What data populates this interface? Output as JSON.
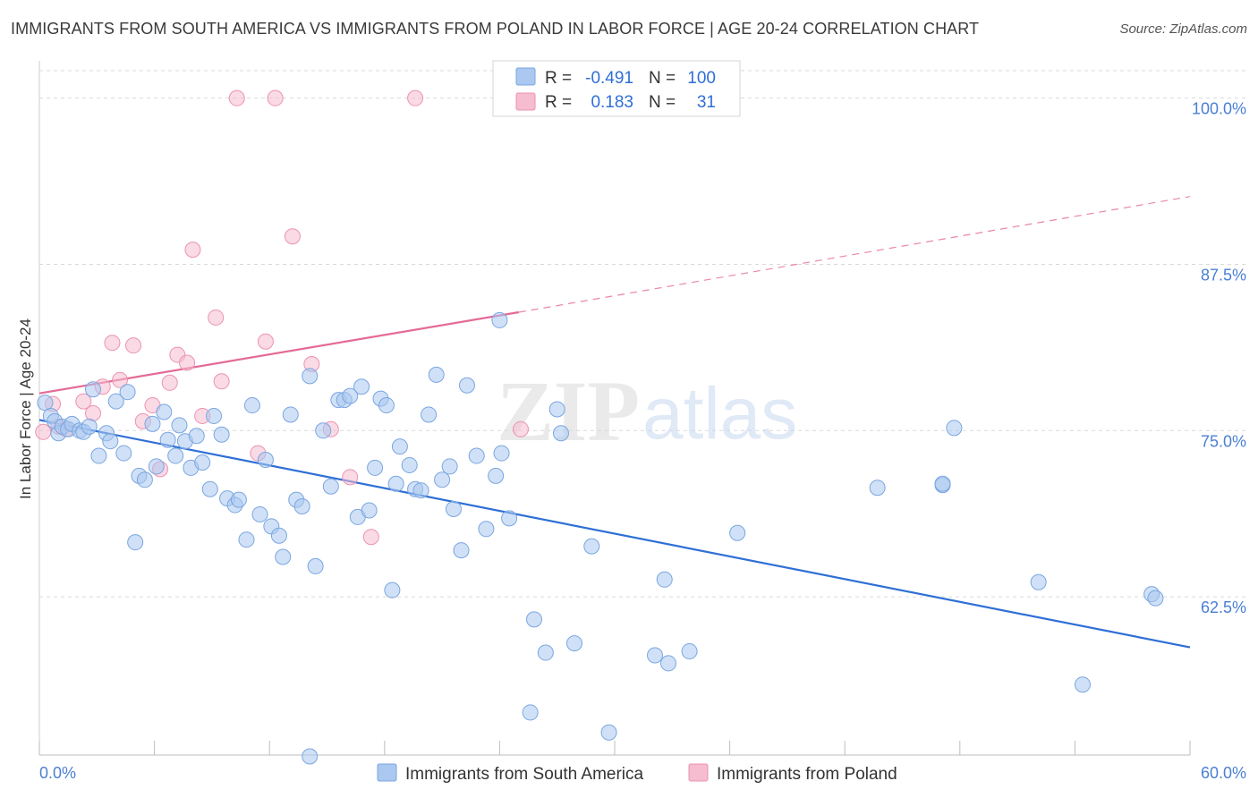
{
  "title": "IMMIGRANTS FROM SOUTH AMERICA VS IMMIGRANTS FROM POLAND IN LABOR FORCE | AGE 20-24 CORRELATION CHART",
  "source": "Source: ZipAtlas.com",
  "watermark": {
    "zip": "ZIP",
    "atlas": "atlas"
  },
  "chart_data": {
    "type": "scatter",
    "xlabel": "",
    "ylabel": "In Labor Force | Age 20-24",
    "xlim": [
      0,
      60
    ],
    "ylim": [
      50.6,
      102.4
    ],
    "x_tick_labels": [
      "0.0%",
      "60.0%"
    ],
    "y_ticks": [
      {
        "value": 100,
        "label": "100.0%"
      },
      {
        "value": 87.5,
        "label": "87.5%"
      },
      {
        "value": 75,
        "label": "75.0%"
      },
      {
        "value": 62.5,
        "label": "62.5%"
      }
    ],
    "colors": {
      "south_america_fill": "#aac8f0",
      "south_america_stroke": "#7aa6e0",
      "south_america_line": "#2f6fd6",
      "poland_fill": "#f6bcd0",
      "poland_stroke": "#eb93b2",
      "poland_line": "#e46a97"
    },
    "legend": [
      {
        "r_label": "R =",
        "r_value": "-0.491",
        "n_label": "N =",
        "n_value": "100"
      },
      {
        "r_label": "R =",
        "r_value": "0.183",
        "n_label": "N =",
        "n_value": "31"
      }
    ],
    "series": [
      {
        "name": "Immigrants from South America",
        "trend": {
          "x0": 0,
          "y0": 75.8,
          "x1": 60,
          "y1": 58.7
        },
        "points": [
          [
            0.3,
            77.1
          ],
          [
            0.6,
            76.1
          ],
          [
            0.8,
            75.7
          ],
          [
            1.0,
            74.8
          ],
          [
            1.2,
            75.3
          ],
          [
            1.5,
            75.1
          ],
          [
            1.7,
            75.5
          ],
          [
            2.1,
            75.0
          ],
          [
            2.3,
            74.9
          ],
          [
            2.6,
            75.3
          ],
          [
            2.8,
            78.1
          ],
          [
            3.1,
            73.1
          ],
          [
            3.5,
            74.8
          ],
          [
            3.7,
            74.2
          ],
          [
            4.0,
            77.2
          ],
          [
            4.4,
            73.3
          ],
          [
            4.6,
            77.9
          ],
          [
            5.0,
            66.6
          ],
          [
            5.2,
            71.6
          ],
          [
            5.5,
            71.3
          ],
          [
            5.9,
            75.5
          ],
          [
            6.1,
            72.3
          ],
          [
            6.5,
            76.4
          ],
          [
            6.7,
            74.3
          ],
          [
            7.1,
            73.1
          ],
          [
            7.3,
            75.4
          ],
          [
            7.6,
            74.2
          ],
          [
            7.9,
            72.2
          ],
          [
            8.2,
            74.6
          ],
          [
            8.5,
            72.6
          ],
          [
            8.9,
            70.6
          ],
          [
            9.1,
            76.1
          ],
          [
            9.5,
            74.7
          ],
          [
            9.8,
            69.9
          ],
          [
            10.2,
            69.4
          ],
          [
            10.4,
            69.8
          ],
          [
            10.8,
            66.8
          ],
          [
            11.1,
            76.9
          ],
          [
            11.5,
            68.7
          ],
          [
            11.8,
            72.8
          ],
          [
            12.1,
            67.8
          ],
          [
            12.5,
            67.1
          ],
          [
            12.7,
            65.5
          ],
          [
            13.1,
            76.2
          ],
          [
            13.4,
            69.8
          ],
          [
            13.7,
            69.3
          ],
          [
            14.1,
            79.1
          ],
          [
            14.4,
            64.8
          ],
          [
            14.8,
            75.0
          ],
          [
            15.2,
            70.8
          ],
          [
            15.6,
            77.3
          ],
          [
            15.9,
            77.3
          ],
          [
            16.2,
            77.6
          ],
          [
            16.6,
            68.5
          ],
          [
            16.8,
            78.3
          ],
          [
            17.2,
            69.0
          ],
          [
            17.5,
            72.2
          ],
          [
            17.8,
            77.4
          ],
          [
            18.1,
            76.9
          ],
          [
            18.4,
            63.0
          ],
          [
            18.6,
            71.0
          ],
          [
            18.8,
            73.8
          ],
          [
            19.3,
            72.4
          ],
          [
            19.6,
            70.6
          ],
          [
            19.9,
            70.5
          ],
          [
            20.3,
            76.2
          ],
          [
            20.7,
            79.2
          ],
          [
            21.0,
            71.3
          ],
          [
            21.4,
            72.3
          ],
          [
            21.6,
            69.1
          ],
          [
            22.0,
            66.0
          ],
          [
            22.3,
            78.4
          ],
          [
            22.8,
            73.1
          ],
          [
            23.3,
            67.6
          ],
          [
            23.8,
            71.6
          ],
          [
            24.1,
            73.3
          ],
          [
            24.5,
            68.4
          ],
          [
            25.6,
            53.8
          ],
          [
            25.8,
            60.8
          ],
          [
            26.4,
            58.3
          ],
          [
            27.0,
            76.6
          ],
          [
            27.2,
            74.8
          ],
          [
            27.9,
            59.0
          ],
          [
            28.8,
            66.3
          ],
          [
            29.7,
            52.3
          ],
          [
            32.1,
            58.1
          ],
          [
            32.6,
            63.8
          ],
          [
            32.8,
            57.5
          ],
          [
            33.9,
            58.4
          ],
          [
            36.4,
            67.3
          ],
          [
            43.7,
            70.7
          ],
          [
            47.1,
            70.9
          ],
          [
            47.7,
            75.2
          ],
          [
            58.0,
            62.7
          ],
          [
            47.1,
            71.0
          ],
          [
            52.1,
            63.6
          ],
          [
            58.2,
            62.4
          ],
          [
            54.4,
            55.9
          ],
          [
            24.0,
            83.3
          ],
          [
            14.1,
            50.5
          ]
        ]
      },
      {
        "name": "Immigrants from Poland",
        "trend": {
          "x0": 0,
          "y0": 77.8,
          "x1": 25,
          "y1": 83.9,
          "dash_x1": 60,
          "dash_y1": 92.6
        },
        "points": [
          [
            0.2,
            74.9
          ],
          [
            0.7,
            77.0
          ],
          [
            1.0,
            75.3
          ],
          [
            1.4,
            75.1
          ],
          [
            2.3,
            77.2
          ],
          [
            2.8,
            76.3
          ],
          [
            3.3,
            78.3
          ],
          [
            3.8,
            81.6
          ],
          [
            4.2,
            78.8
          ],
          [
            4.9,
            81.4
          ],
          [
            5.4,
            75.7
          ],
          [
            5.9,
            76.9
          ],
          [
            6.3,
            72.1
          ],
          [
            6.8,
            78.6
          ],
          [
            7.2,
            80.7
          ],
          [
            7.7,
            80.1
          ],
          [
            8.0,
            88.6
          ],
          [
            8.5,
            76.1
          ],
          [
            9.2,
            83.5
          ],
          [
            9.5,
            78.7
          ],
          [
            10.3,
            100.0
          ],
          [
            11.4,
            73.3
          ],
          [
            11.8,
            81.7
          ],
          [
            12.3,
            100.0
          ],
          [
            13.2,
            89.6
          ],
          [
            14.2,
            80.0
          ],
          [
            15.2,
            75.1
          ],
          [
            16.2,
            71.5
          ],
          [
            17.3,
            67.0
          ],
          [
            19.6,
            100.0
          ],
          [
            25.1,
            75.1
          ]
        ]
      }
    ]
  }
}
